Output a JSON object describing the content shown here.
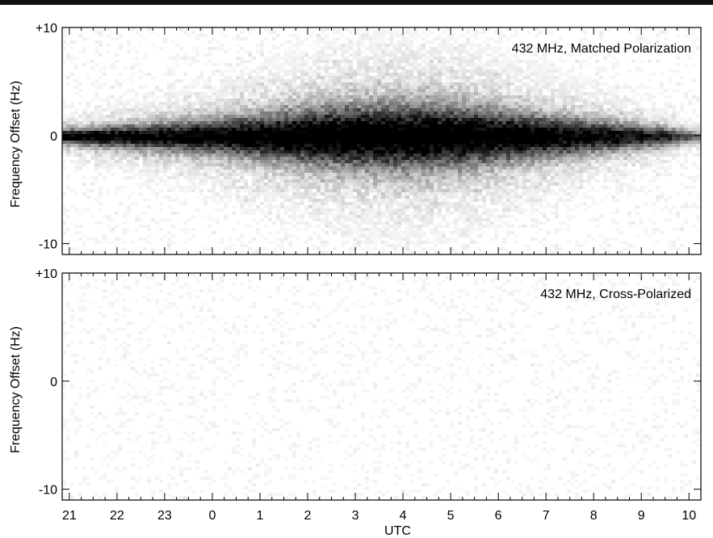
{
  "chart_data": [
    {
      "type": "heatmap",
      "title": "432 MHz, Matched Polarization",
      "xlabel": "",
      "ylabel": "Frequency Offset (Hz)",
      "x_tick_labels": [
        "21",
        "22",
        "23",
        "0",
        "1",
        "2",
        "3",
        "4",
        "5",
        "6",
        "7",
        "8",
        "9",
        "10"
      ],
      "x_hours": [
        21,
        22,
        23,
        24,
        25,
        26,
        27,
        28,
        29,
        30,
        31,
        32,
        33,
        34
      ],
      "xlim": [
        20.85,
        34.25
      ],
      "y_tick_labels": [
        "+10",
        "0",
        "-10"
      ],
      "y_tick_values": [
        10,
        0,
        -10
      ],
      "ylim": [
        -11,
        10
      ],
      "signal_profile": {
        "x": [
          20.85,
          21.5,
          22.5,
          23.5,
          24.5,
          25.5,
          26.5,
          27.5,
          28.5,
          29.5,
          30.5,
          31.5,
          32.5,
          33.5,
          34.0,
          34.25
        ],
        "spread_hz": [
          0.6,
          0.8,
          1.1,
          1.4,
          1.8,
          2.2,
          2.6,
          2.8,
          2.8,
          2.5,
          2.0,
          1.6,
          1.2,
          0.8,
          0.5,
          0.4
        ],
        "intensity": [
          0.95,
          0.95,
          0.9,
          0.88,
          0.9,
          0.95,
          1.0,
          1.0,
          1.0,
          0.98,
          0.95,
          0.9,
          0.85,
          0.75,
          0.6,
          0.5
        ]
      },
      "center_hz": 0,
      "noise_level": 0.07
    },
    {
      "type": "heatmap",
      "title": "432 MHz, Cross-Polarized",
      "xlabel": "UTC",
      "ylabel": "Frequency Offset (Hz)",
      "x_tick_labels": [
        "21",
        "22",
        "23",
        "0",
        "1",
        "2",
        "3",
        "4",
        "5",
        "6",
        "7",
        "8",
        "9",
        "10"
      ],
      "x_hours": [
        21,
        22,
        23,
        24,
        25,
        26,
        27,
        28,
        29,
        30,
        31,
        32,
        33,
        34
      ],
      "xlim": [
        20.85,
        34.25
      ],
      "y_tick_labels": [
        "+10",
        "0",
        "-10"
      ],
      "y_tick_values": [
        10,
        0,
        -10
      ],
      "ylim": [
        -11,
        10
      ],
      "signal_profile": {
        "x": [
          20.85,
          34.25
        ],
        "spread_hz": [
          0,
          0
        ],
        "intensity": [
          0,
          0
        ]
      },
      "center_hz": 0,
      "noise_level": 0.06
    }
  ],
  "colors": {
    "background": "#ffffff",
    "ink": "#000000",
    "top_bar": "#111111"
  }
}
